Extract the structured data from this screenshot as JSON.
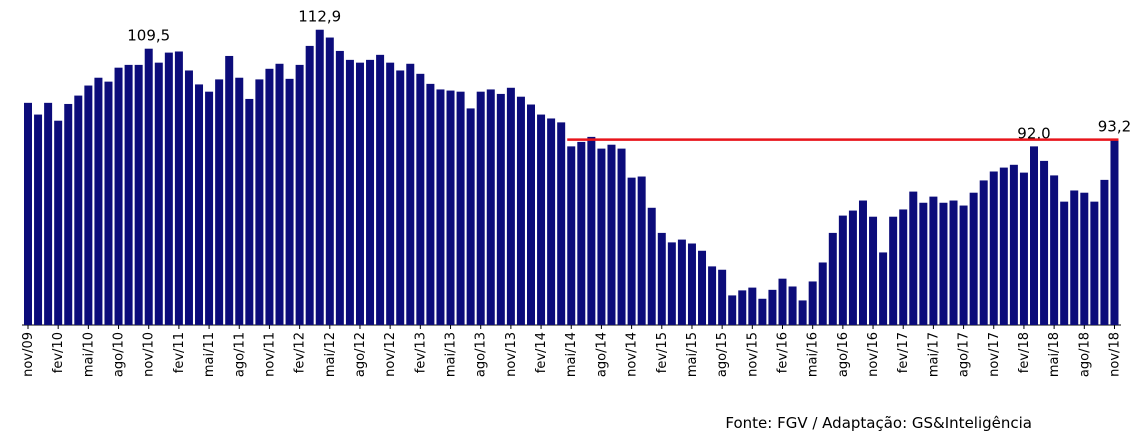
{
  "chart_data": {
    "type": "bar",
    "source": "Fonte: FGV / Adaptação: GS&Inteligência",
    "color": "#0c0c7a",
    "reference_color": "#e8141b",
    "ylim": [
      60,
      115
    ],
    "categories": [
      "nov/09",
      null,
      null,
      "fev/10",
      null,
      null,
      "mai/10",
      null,
      null,
      "ago/10",
      null,
      null,
      "nov/10",
      null,
      null,
      "fev/11",
      null,
      null,
      "mai/11",
      null,
      null,
      "ago/11",
      null,
      null,
      "nov/11",
      null,
      null,
      "fev/12",
      null,
      null,
      "mai/12",
      null,
      null,
      "ago/12",
      null,
      null,
      "nov/12",
      null,
      null,
      "fev/13",
      null,
      null,
      "mai/13",
      null,
      null,
      "ago/13",
      null,
      null,
      "nov/13",
      null,
      null,
      "fev/14",
      null,
      null,
      "mai/14",
      null,
      null,
      "ago/14",
      null,
      null,
      "nov/14",
      null,
      null,
      "fev/15",
      null,
      null,
      "mai/15",
      null,
      null,
      "ago/15",
      null,
      null,
      "nov/15",
      null,
      null,
      "fev/16",
      null,
      null,
      "mai/16",
      null,
      null,
      "ago/16",
      null,
      null,
      "nov/16",
      null,
      null,
      "fev/17",
      null,
      null,
      "mai/17",
      null,
      null,
      "ago/17",
      null,
      null,
      "nov/17",
      null,
      null,
      "fev/18",
      null,
      null,
      "mai/18",
      null,
      null,
      "ago/18",
      null,
      null,
      "nov/18"
    ],
    "values": [
      99.8,
      97.7,
      99.8,
      96.6,
      99.6,
      101.1,
      102.9,
      104.3,
      103.6,
      106.1,
      106.6,
      106.6,
      109.5,
      107.0,
      108.8,
      109.0,
      105.6,
      103.1,
      101.8,
      104.0,
      108.2,
      104.3,
      100.5,
      104.0,
      105.9,
      106.8,
      104.1,
      106.6,
      110.0,
      112.9,
      111.5,
      109.1,
      107.5,
      107.0,
      107.5,
      108.4,
      107.0,
      105.6,
      106.8,
      105.0,
      103.2,
      102.2,
      102.0,
      101.8,
      98.8,
      101.8,
      102.2,
      101.4,
      102.5,
      100.9,
      99.5,
      97.7,
      97.0,
      96.3,
      92.0,
      92.8,
      93.7,
      91.6,
      92.3,
      91.6,
      86.4,
      86.6,
      81.0,
      76.5,
      74.8,
      75.3,
      74.6,
      73.3,
      70.5,
      69.9,
      65.3,
      66.2,
      66.7,
      64.7,
      66.3,
      68.3,
      66.9,
      64.4,
      67.8,
      71.2,
      76.5,
      79.6,
      80.5,
      82.3,
      79.4,
      73.0,
      79.4,
      80.7,
      83.9,
      81.9,
      83.0,
      81.9,
      82.3,
      81.4,
      83.7,
      85.9,
      87.5,
      88.2,
      88.7,
      87.3,
      92.0,
      89.4,
      86.8,
      82.1,
      84.1,
      83.7,
      82.1,
      86.0,
      93.2
    ],
    "value_labels": [
      null,
      null,
      null,
      null,
      null,
      null,
      null,
      null,
      null,
      null,
      null,
      null,
      "109,5",
      null,
      null,
      null,
      null,
      null,
      null,
      null,
      null,
      null,
      null,
      null,
      null,
      null,
      null,
      null,
      null,
      "112,9",
      null,
      null,
      null,
      null,
      null,
      null,
      null,
      null,
      null,
      null,
      null,
      null,
      null,
      null,
      null,
      null,
      null,
      null,
      null,
      null,
      null,
      null,
      null,
      null,
      null,
      null,
      null,
      null,
      null,
      null,
      null,
      null,
      null,
      null,
      null,
      null,
      null,
      null,
      null,
      null,
      null,
      null,
      null,
      null,
      null,
      null,
      null,
      null,
      null,
      null,
      null,
      null,
      null,
      null,
      null,
      null,
      null,
      null,
      null,
      null,
      null,
      null,
      null,
      null,
      null,
      null,
      null,
      null,
      null,
      null,
      "92,0",
      null,
      null,
      null,
      null,
      null,
      null,
      null,
      "93,2"
    ]
  }
}
